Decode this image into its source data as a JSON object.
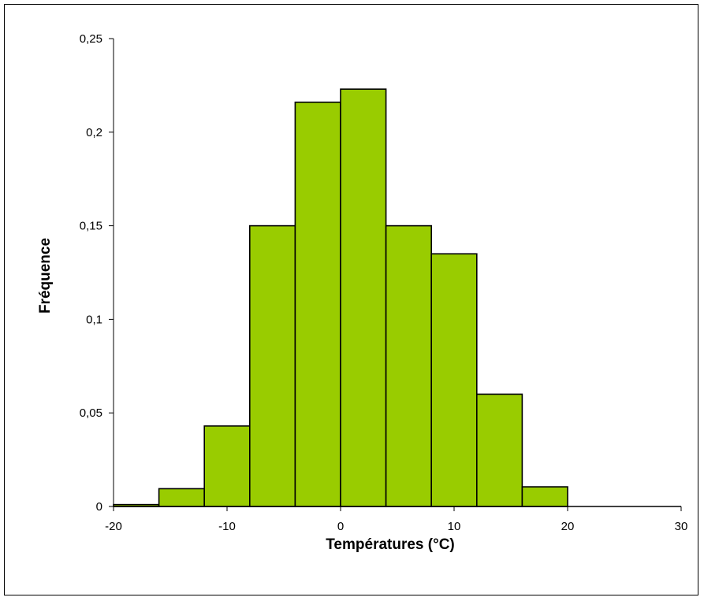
{
  "chart_data": {
    "type": "bar",
    "title": "",
    "xlabel": "Températures (°C)",
    "ylabel": "Fréquence",
    "xlim": [
      -20,
      30
    ],
    "ylim": [
      0,
      0.25
    ],
    "grid": false,
    "bar_color": "#99cc00",
    "bar_edge_color": "#000000",
    "x_ticks": [
      -20,
      -10,
      0,
      10,
      20,
      30
    ],
    "x_tick_labels": [
      "-20",
      "-10",
      "0",
      "10",
      "20",
      "30"
    ],
    "y_ticks": [
      0,
      0.05,
      0.1,
      0.15,
      0.2,
      0.25
    ],
    "y_tick_labels": [
      "0",
      "0,05",
      "0,1",
      "0,15",
      "0,2",
      "0,25"
    ],
    "bins": [
      {
        "x0": -20,
        "x1": -16,
        "value": 0.001
      },
      {
        "x0": -16,
        "x1": -12,
        "value": 0.0095
      },
      {
        "x0": -12,
        "x1": -8,
        "value": 0.043
      },
      {
        "x0": -8,
        "x1": -4,
        "value": 0.15
      },
      {
        "x0": -4,
        "x1": 0,
        "value": 0.216
      },
      {
        "x0": 0,
        "x1": 4,
        "value": 0.223
      },
      {
        "x0": 4,
        "x1": 8,
        "value": 0.15
      },
      {
        "x0": 8,
        "x1": 12,
        "value": 0.135
      },
      {
        "x0": 12,
        "x1": 16,
        "value": 0.06
      },
      {
        "x0": 16,
        "x1": 20,
        "value": 0.0105
      }
    ]
  }
}
